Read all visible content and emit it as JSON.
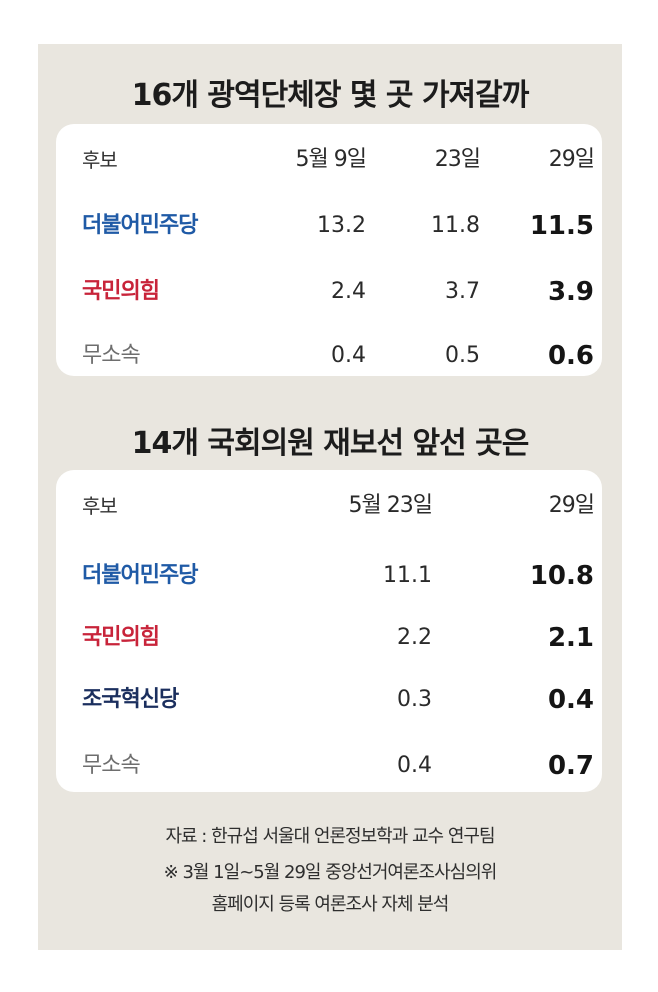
{
  "chart_data": [
    {
      "type": "table",
      "title": "16개 광역단체장 몇 곳 가져갈까",
      "header": {
        "label": "후보",
        "columns": [
          "5월 9일",
          "23일",
          "29일"
        ]
      },
      "rows": [
        {
          "name": "더불어민주당",
          "color": "#1f5aa6",
          "values": [
            "13.2",
            "11.8",
            "11.5"
          ]
        },
        {
          "name": "국민의힘",
          "color": "#c8243a",
          "values": [
            "2.4",
            "3.7",
            "3.9"
          ]
        },
        {
          "name": "무소속",
          "color": "#6e6e6e",
          "values": [
            "0.4",
            "0.5",
            "0.6"
          ]
        }
      ]
    },
    {
      "type": "table",
      "title": "14개 국회의원 재보선 앞선 곳은",
      "header": {
        "label": "후보",
        "columns": [
          "5월 23일",
          "29일"
        ]
      },
      "rows": [
        {
          "name": "더불어민주당",
          "color": "#1f5aa6",
          "values": [
            "11.1",
            "10.8"
          ]
        },
        {
          "name": "국민의힘",
          "color": "#c8243a",
          "values": [
            "2.2",
            "2.1"
          ]
        },
        {
          "name": "조국혁신당",
          "color": "#1b2f5e",
          "values": [
            "0.3",
            "0.4"
          ]
        },
        {
          "name": "무소속",
          "color": "#6e6e6e",
          "values": [
            "0.4",
            "0.7"
          ]
        }
      ]
    }
  ],
  "footer": {
    "source": "자료 : 한규섭 서울대 언론정보학과 교수 연구팀",
    "note_line1": "※ 3월 1일~5월 29일 중앙선거여론조사심의위",
    "note_line2": "홈페이지 등록 여론조사 자체 분석"
  }
}
